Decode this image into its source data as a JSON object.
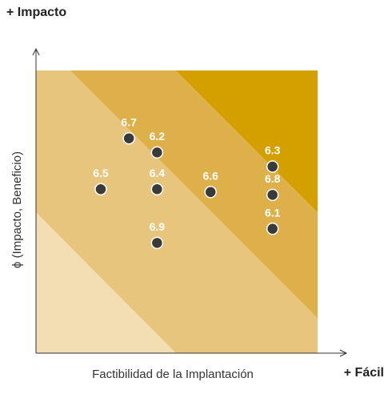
{
  "chart_data": {
    "type": "scatter",
    "corner_y_label": "+ Impacto",
    "corner_x_label": "+ Fácil",
    "y_label": "ϕ (Impacto, Beneficio)",
    "x_label": "Factibilidad de la Implantación",
    "xlim": [
      0,
      10
    ],
    "ylim": [
      0,
      10
    ],
    "x": [
      3.3,
      4.3,
      2.3,
      4.3,
      6.2,
      8.4,
      8.4,
      8.4,
      4.3
    ],
    "values": [
      7.6,
      7.1,
      5.8,
      5.8,
      5.7,
      6.6,
      5.6,
      4.4,
      3.9
    ],
    "point_labels": [
      "6.7",
      "6.2",
      "6.5",
      "6.4",
      "6.6",
      "6.3",
      "6.8",
      "6.1",
      "6.9"
    ],
    "color": "#3a3a3a"
  }
}
